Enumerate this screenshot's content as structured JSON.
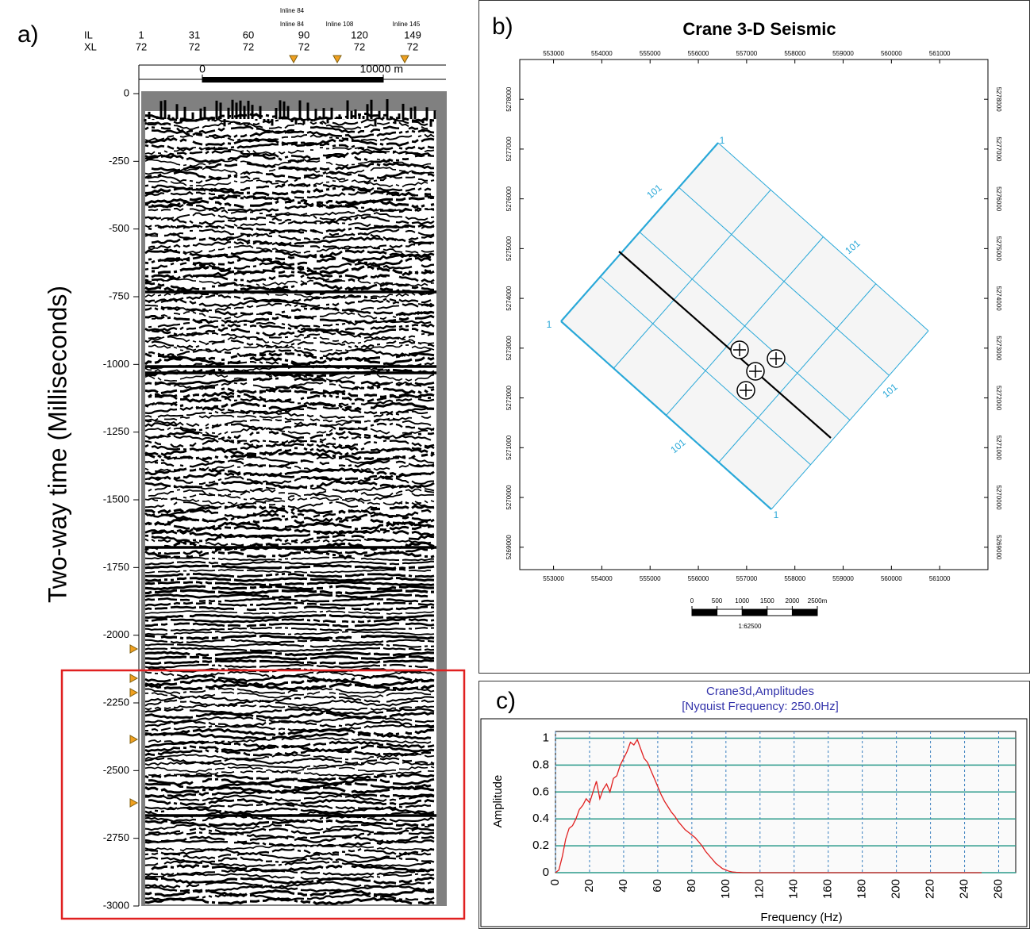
{
  "chart_data": [
    {
      "type": "seismic",
      "label": "a)",
      "ylabel": "Two-way time (Milliseconds)",
      "ylim": [
        -3000,
        0
      ],
      "yticks": [
        0,
        -250,
        -500,
        -750,
        -1000,
        -1250,
        -1500,
        -1750,
        -2000,
        -2250,
        -2500,
        -2750,
        -3000
      ],
      "il_label": "IL",
      "xl_label": "XL",
      "inlines": [
        1,
        31,
        60,
        90,
        120,
        149
      ],
      "crosslines": [
        72,
        72,
        72,
        72,
        72,
        72
      ],
      "annotations": [
        "Inline 84",
        "Inline 84",
        "Inline 108",
        "Inline 145"
      ],
      "scale_ticks": [
        0,
        {
          "value": 10000,
          "label": "10000 m"
        }
      ]
    },
    {
      "type": "map",
      "label": "b)",
      "title": "Crane 3-D Seismic",
      "xlim": [
        552300,
        562000
      ],
      "xticks": [
        553000,
        554000,
        555000,
        556000,
        557000,
        558000,
        559000,
        560000,
        561000
      ],
      "ylim": [
        5268550,
        5278800
      ],
      "yticks": [
        5269000,
        5270000,
        5271000,
        5272000,
        5273000,
        5274000,
        5275000,
        5276000,
        5277000,
        5278000
      ],
      "grid_labels": [
        "1",
        "101",
        "101",
        "1",
        "101",
        "101",
        "1"
      ],
      "scale_ticks": [
        0,
        500,
        1000,
        1500,
        2000,
        {
          "value": 2500,
          "label": "2500m"
        }
      ],
      "scale_ratio": "1:62500"
    },
    {
      "type": "line",
      "label": "c)",
      "title": "Crane3d,Amplitudes",
      "subtitle": "[Nyquist Frequency: 250.0Hz]",
      "xlabel": "Frequency (Hz)",
      "ylabel": "Amplitude",
      "color": "#e02020",
      "grid": true,
      "x": [
        0,
        2,
        4,
        6,
        8,
        10,
        12,
        14,
        16,
        18,
        20,
        22,
        24,
        26,
        28,
        30,
        32,
        34,
        36,
        38,
        40,
        42,
        44,
        46,
        48,
        50,
        52,
        54,
        56,
        58,
        60,
        62,
        64,
        66,
        68,
        70,
        72,
        74,
        76,
        78,
        80,
        82,
        84,
        86,
        88,
        90,
        92,
        94,
        96,
        98,
        100,
        102,
        104,
        106,
        108,
        110,
        115,
        120,
        150,
        200,
        250
      ],
      "values": [
        0,
        0.02,
        0.12,
        0.25,
        0.33,
        0.35,
        0.4,
        0.47,
        0.5,
        0.55,
        0.52,
        0.6,
        0.68,
        0.55,
        0.62,
        0.66,
        0.6,
        0.7,
        0.72,
        0.8,
        0.85,
        0.9,
        0.97,
        0.95,
        0.99,
        0.92,
        0.85,
        0.82,
        0.76,
        0.7,
        0.64,
        0.58,
        0.53,
        0.49,
        0.45,
        0.42,
        0.38,
        0.35,
        0.32,
        0.3,
        0.28,
        0.26,
        0.23,
        0.2,
        0.16,
        0.13,
        0.1,
        0.07,
        0.05,
        0.03,
        0.02,
        0.01,
        0.005,
        0.003,
        0.002,
        0,
        0,
        0,
        0,
        0,
        0
      ],
      "xlim": [
        0,
        270
      ],
      "xticks": [
        0,
        20,
        40,
        60,
        80,
        100,
        120,
        140,
        160,
        180,
        200,
        220,
        240,
        260
      ],
      "ylim": [
        0,
        1.05
      ],
      "yticks": [
        0,
        0.2,
        0.4,
        0.6,
        0.8,
        1
      ]
    }
  ]
}
